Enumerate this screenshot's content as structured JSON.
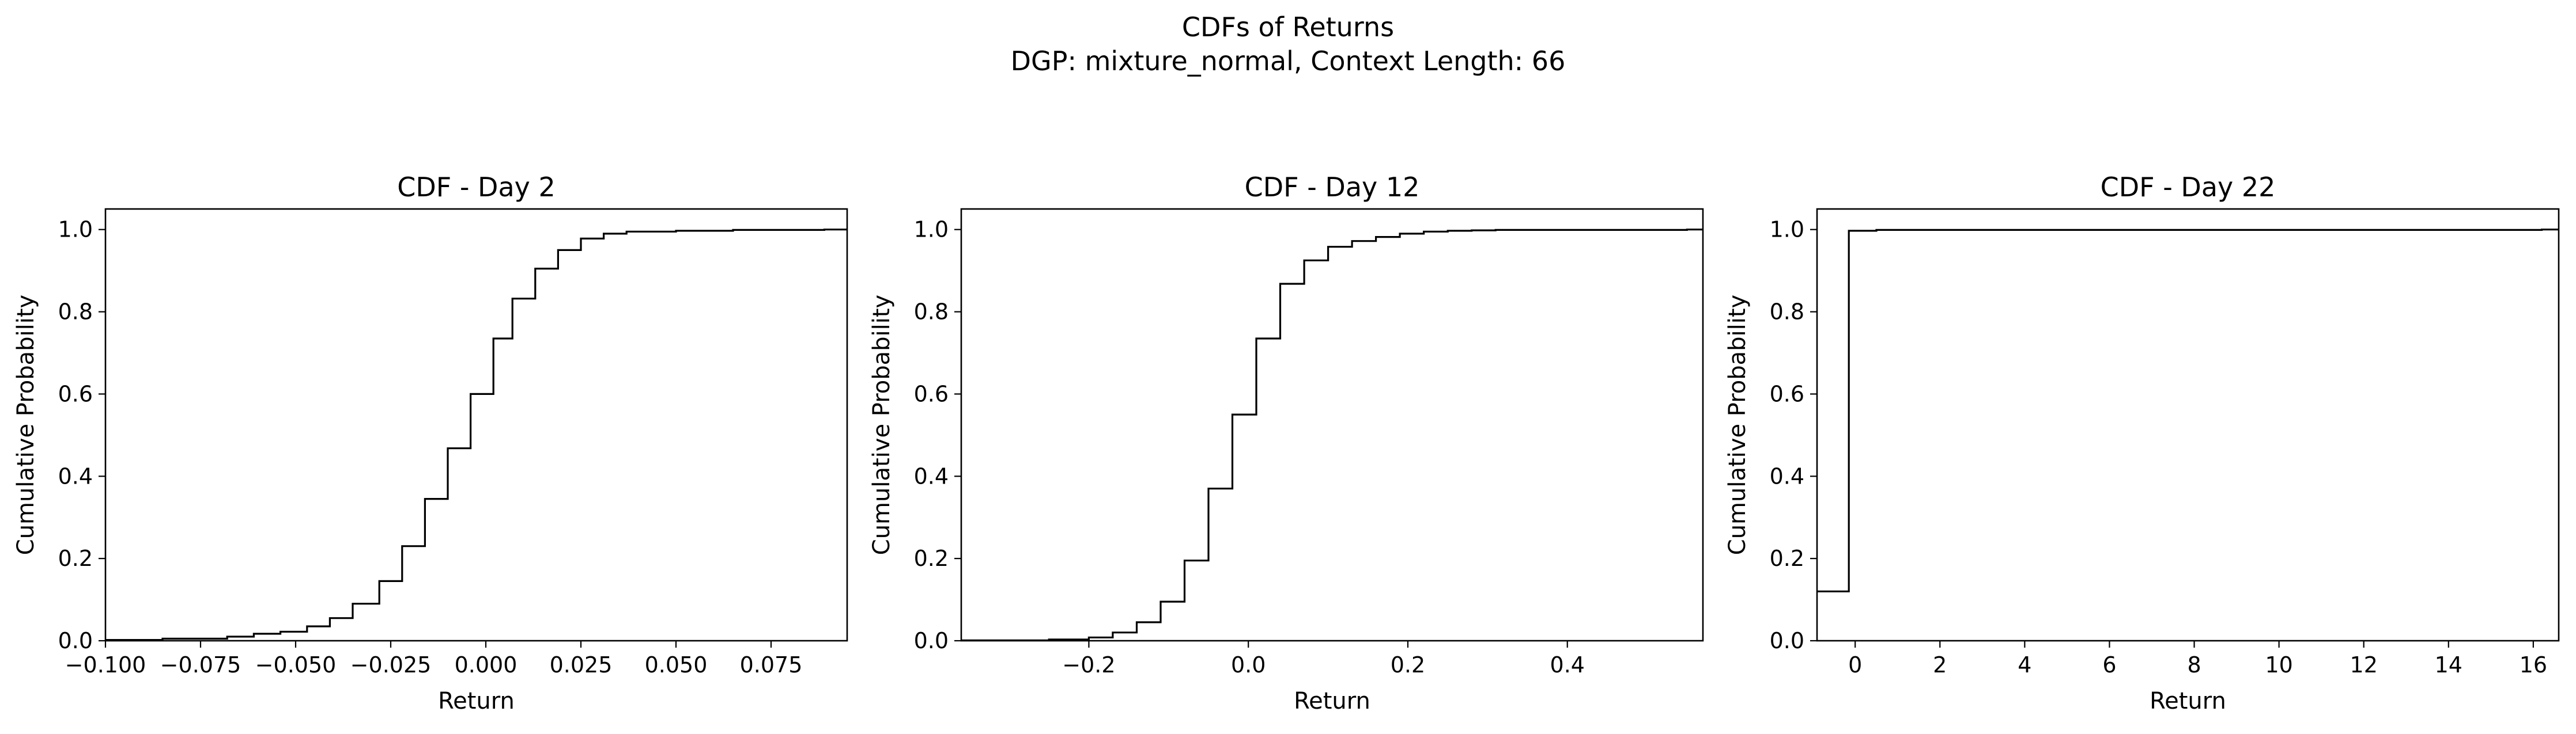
{
  "figure": {
    "suptitle_line1": "CDFs of Returns",
    "suptitle_line2": "DGP: mixture_normal, Context Length: 66",
    "line_color": "#000000"
  },
  "chart_data": [
    {
      "type": "line",
      "step": "post",
      "title": "CDF - Day 2",
      "xlabel": "Return",
      "ylabel": "Cumulative Probability",
      "xlim": [
        -0.1,
        0.095
      ],
      "ylim": [
        0,
        1.05
      ],
      "xticks": [
        -0.1,
        -0.075,
        -0.05,
        -0.025,
        0.0,
        0.025,
        0.05,
        0.075
      ],
      "xtick_labels": [
        "−0.100",
        "−0.075",
        "−0.050",
        "−0.025",
        "0.000",
        "0.025",
        "0.050",
        "0.075"
      ],
      "yticks": [
        0,
        0.2,
        0.4,
        0.6,
        0.8,
        1.0
      ],
      "ytick_labels": [
        "0.0",
        "0.2",
        "0.4",
        "0.6",
        "0.8",
        "1.0"
      ],
      "x": [
        -0.1,
        -0.085,
        -0.068,
        -0.061,
        -0.054,
        -0.047,
        -0.041,
        -0.035,
        -0.028,
        -0.022,
        -0.016,
        -0.01,
        -0.004,
        0.002,
        0.007,
        0.013,
        0.019,
        0.025,
        0.031,
        0.037,
        0.05,
        0.065,
        0.089,
        0.095
      ],
      "y": [
        0.002,
        0.005,
        0.01,
        0.017,
        0.022,
        0.035,
        0.055,
        0.09,
        0.145,
        0.23,
        0.345,
        0.468,
        0.6,
        0.735,
        0.832,
        0.905,
        0.95,
        0.978,
        0.99,
        0.995,
        0.997,
        0.999,
        1.0,
        1.0
      ]
    },
    {
      "type": "line",
      "step": "post",
      "title": "CDF - Day 12",
      "xlabel": "Return",
      "ylabel": "Cumulative Probability",
      "xlim": [
        -0.36,
        0.57
      ],
      "ylim": [
        0,
        1.05
      ],
      "xticks": [
        -0.2,
        0.0,
        0.2,
        0.4
      ],
      "xtick_labels": [
        "−0.2",
        "0.0",
        "0.2",
        "0.4"
      ],
      "yticks": [
        0,
        0.2,
        0.4,
        0.6,
        0.8,
        1.0
      ],
      "ytick_labels": [
        "0.0",
        "0.2",
        "0.4",
        "0.6",
        "0.8",
        "1.0"
      ],
      "x": [
        -0.36,
        -0.25,
        -0.2,
        -0.17,
        -0.14,
        -0.11,
        -0.08,
        -0.05,
        -0.02,
        0.01,
        0.04,
        0.07,
        0.1,
        0.13,
        0.16,
        0.19,
        0.22,
        0.25,
        0.28,
        0.31,
        0.4,
        0.55,
        0.57
      ],
      "y": [
        0.001,
        0.003,
        0.008,
        0.02,
        0.045,
        0.095,
        0.195,
        0.37,
        0.55,
        0.735,
        0.868,
        0.925,
        0.958,
        0.972,
        0.982,
        0.99,
        0.995,
        0.997,
        0.998,
        0.999,
        0.999,
        1.0,
        1.0
      ]
    },
    {
      "type": "line",
      "step": "post",
      "title": "CDF - Day 22",
      "xlabel": "Return",
      "ylabel": "Cumulative Probability",
      "xlim": [
        -0.9,
        16.6
      ],
      "ylim": [
        0,
        1.05
      ],
      "xticks": [
        0,
        2,
        4,
        6,
        8,
        10,
        12,
        14,
        16
      ],
      "xtick_labels": [
        "0",
        "2",
        "4",
        "6",
        "8",
        "10",
        "12",
        "14",
        "16"
      ],
      "yticks": [
        0,
        0.2,
        0.4,
        0.6,
        0.8,
        1.0
      ],
      "ytick_labels": [
        "0.0",
        "0.2",
        "0.4",
        "0.6",
        "0.8",
        "1.0"
      ],
      "x": [
        -0.9,
        -0.15,
        0.5,
        16.2,
        16.6
      ],
      "y": [
        0.12,
        0.997,
        0.999,
        1.0,
        1.0
      ]
    }
  ]
}
